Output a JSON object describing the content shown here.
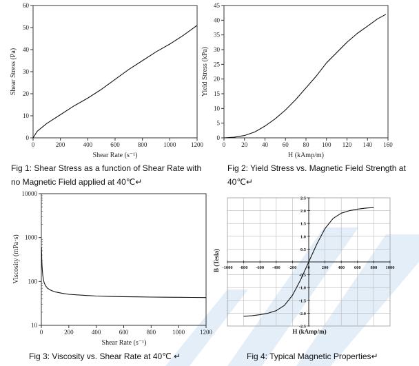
{
  "page": {
    "background": "#ffffff",
    "watermark_color": "#e3eef9"
  },
  "captions": {
    "fig1": "Fig 1: Shear Stress as a function of Shear Rate with no Magnetic Field applied at 40℃↵",
    "fig2": "Fig 2: Yield Stress vs. Magnetic Field Strength at 40℃↵",
    "fig3": "Fig 3: Viscosity vs. Shear Rate at 40℃ ↵",
    "fig4": "Fig 4: Typical Magnetic Properties↵"
  },
  "chart_data": [
    {
      "type": "line",
      "title": "",
      "xlabel": "Shear Rate (s⁻¹)",
      "ylabel": "Shear Stress (Pa)",
      "xlim": [
        0,
        1200
      ],
      "ylim": [
        0,
        60
      ],
      "xticks": [
        0,
        200,
        400,
        600,
        800,
        1000,
        1200
      ],
      "yticks": [
        0,
        10,
        20,
        30,
        40,
        50,
        60
      ],
      "grid": false,
      "series": [
        {
          "x": [
            0,
            30,
            100,
            200,
            300,
            400,
            500,
            600,
            700,
            800,
            900,
            1000,
            1100,
            1200
          ],
          "y": [
            0,
            3,
            6.5,
            10.5,
            14.5,
            18,
            22,
            26.5,
            31,
            35,
            39,
            42.5,
            46.5,
            51
          ]
        }
      ]
    },
    {
      "type": "line",
      "title": "",
      "xlabel": "H (kAmp/m)",
      "ylabel": "Yield Stress (kPa)",
      "xlim": [
        0,
        160
      ],
      "ylim": [
        0,
        45
      ],
      "xticks": [
        0,
        20,
        40,
        60,
        80,
        100,
        120,
        140,
        160
      ],
      "yticks": [
        0,
        5,
        10,
        15,
        20,
        25,
        30,
        35,
        40,
        45
      ],
      "grid": false,
      "series": [
        {
          "x": [
            0,
            10,
            20,
            30,
            40,
            50,
            60,
            70,
            80,
            90,
            100,
            110,
            120,
            130,
            140,
            150,
            158
          ],
          "y": [
            0,
            0.2,
            0.8,
            2,
            4,
            6.5,
            9.5,
            13,
            17,
            21,
            25.5,
            29,
            32.5,
            35.5,
            38,
            40.5,
            42
          ]
        }
      ]
    },
    {
      "type": "line",
      "title": "",
      "xlabel": "Shear Rate (s⁻¹)",
      "ylabel": "Viscosity (mPa·s)",
      "yscale": "log",
      "xlim": [
        0,
        1200
      ],
      "ylim": [
        10,
        10000
      ],
      "xticks": [
        0,
        200,
        400,
        600,
        800,
        1000,
        1200
      ],
      "yticks": [
        10,
        100,
        1000,
        10000
      ],
      "grid": false,
      "series": [
        {
          "x": [
            1,
            3,
            6,
            10,
            15,
            20,
            30,
            45,
            60,
            80,
            100,
            150,
            200,
            300,
            400,
            500,
            600,
            700,
            800,
            900,
            1000,
            1100,
            1200
          ],
          "y": [
            600,
            320,
            200,
            140,
            110,
            95,
            80,
            70,
            65,
            61,
            58,
            54,
            51,
            48.5,
            46.5,
            45.5,
            45,
            44.5,
            44,
            43.8,
            43.5,
            43.2,
            43
          ]
        }
      ]
    },
    {
      "type": "line",
      "title": "",
      "xlabel": "H (kAmp/m)",
      "ylabel": "B (Tesla)",
      "xlim": [
        -1000,
        1000
      ],
      "ylim": [
        -2.5,
        2.5
      ],
      "xticks": [
        -1000,
        -800,
        -600,
        -400,
        -200,
        0,
        200,
        400,
        600,
        800,
        1000
      ],
      "yticks": [
        -2.5,
        -2.0,
        -1.5,
        -1.0,
        -0.5,
        0,
        0.5,
        1.0,
        1.5,
        2.0,
        2.5
      ],
      "grid": true,
      "series": [
        {
          "x": [
            -800,
            -700,
            -600,
            -500,
            -400,
            -300,
            -200,
            -150,
            -100,
            -50,
            0,
            50,
            100,
            150,
            200,
            300,
            400,
            500,
            600,
            700,
            800
          ],
          "y": [
            -2.12,
            -2.1,
            -2.06,
            -2.0,
            -1.9,
            -1.7,
            -1.3,
            -1.0,
            -0.7,
            -0.35,
            0,
            0.35,
            0.7,
            1.0,
            1.3,
            1.7,
            1.9,
            2.0,
            2.06,
            2.1,
            2.12
          ]
        }
      ]
    }
  ]
}
